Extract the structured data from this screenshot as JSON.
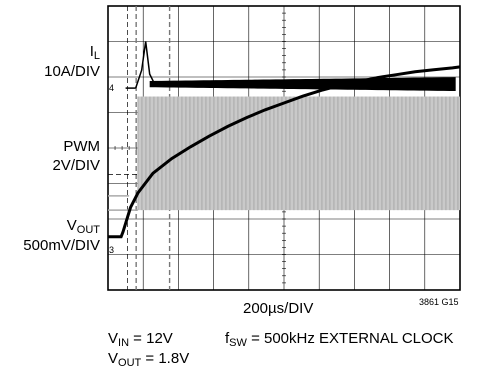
{
  "chart_data": {
    "type": "line",
    "title": "",
    "xlabel": "200µs/DIV",
    "figure_code": "3861 G15",
    "grid": true,
    "grid_divisions": {
      "x": 10,
      "y": 8
    },
    "x_unit": "µs",
    "x": [
      -240,
      -200,
      -180,
      -170,
      -160,
      -120,
      -80,
      -40,
      0,
      100,
      200,
      300,
      400,
      500,
      600,
      700,
      800,
      900,
      1000,
      1100,
      1200,
      1300,
      1400,
      1500,
      1600,
      1640
    ],
    "series": [
      {
        "label": "I",
        "label_sub": "L",
        "scale": "10A/DIV",
        "marker": "4",
        "style": "thick black ripple",
        "values": [
          0,
          0,
          0,
          0,
          0,
          0,
          0,
          0,
          0,
          0,
          0,
          0,
          0,
          0,
          0,
          0,
          0,
          0,
          0,
          0,
          0,
          0,
          0,
          0,
          0,
          0
        ]
      },
      {
        "label": "PWM",
        "scale": "2V/DIV",
        "style": "grey switching band",
        "values": [
          0,
          0,
          0,
          0,
          0,
          0,
          0,
          0,
          0,
          0,
          0,
          0,
          0,
          0,
          0,
          0,
          0,
          0,
          0,
          0,
          0,
          0,
          0,
          0,
          0,
          0
        ]
      },
      {
        "label": "V",
        "label_sub": "OUT",
        "scale": "500mV/DIV",
        "marker": "3",
        "style": "black",
        "values": [
          0,
          0,
          0,
          0,
          0.05,
          0.3,
          0.45,
          0.55,
          0.65,
          0.8,
          0.92,
          1.03,
          1.13,
          1.22,
          1.3,
          1.37,
          1.44,
          1.5,
          1.55,
          1.59,
          1.63,
          1.66,
          1.69,
          1.71,
          1.73,
          1.74
        ]
      }
    ],
    "conditions": [
      {
        "text": "V",
        "sub": "IN",
        "rest": " = 12V"
      },
      {
        "text": "V",
        "sub": "OUT",
        "rest": " = 1.8V"
      },
      {
        "text": "f",
        "sub": "SW",
        "rest": " = 500kHz EXTERNAL CLOCK"
      }
    ]
  }
}
